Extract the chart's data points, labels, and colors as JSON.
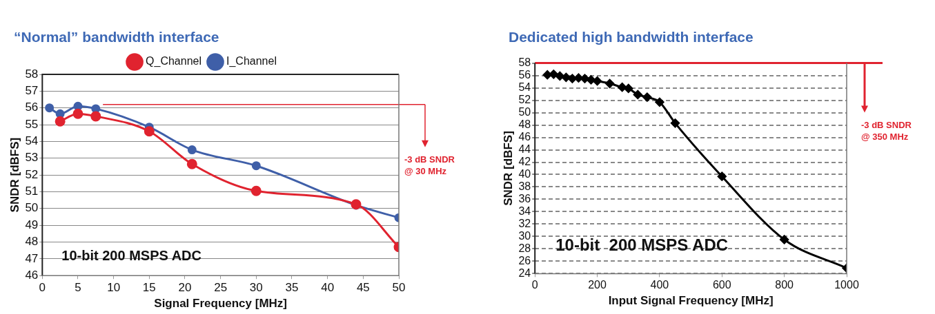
{
  "chart_data": [
    {
      "type": "line",
      "title": "“Normal” bandwidth interface",
      "xlabel": "Signal Frequency [MHz]",
      "ylabel": "SNDR [dBFS]",
      "xlim": [
        0,
        50
      ],
      "xticks": [
        0,
        5,
        10,
        15,
        20,
        25,
        30,
        35,
        40,
        45,
        50
      ],
      "ylim": [
        46,
        58
      ],
      "yticks": [
        46,
        47,
        48,
        49,
        50,
        51,
        52,
        53,
        54,
        55,
        56,
        57,
        58
      ],
      "grid": "y",
      "legend": "top",
      "marker": "circle",
      "series": [
        {
          "name": "I_Channel",
          "color": "#3f5fa8",
          "x": [
            1,
            2.5,
            5,
            7.5,
            15,
            21,
            30,
            44,
            50
          ],
          "values": [
            56.0,
            55.65,
            56.1,
            55.95,
            54.85,
            53.5,
            52.55,
            50.2,
            49.45
          ]
        },
        {
          "name": "Q_Channel",
          "color": "#e0232f",
          "x": [
            2.5,
            5,
            7.5,
            15,
            21,
            30,
            44,
            50
          ],
          "values": [
            55.2,
            55.65,
            55.5,
            54.6,
            52.65,
            51.05,
            50.25,
            47.7
          ]
        }
      ],
      "ref_lines": [
        {
          "axis": "y",
          "value": 56.2,
          "label": "-3 dB SNDR\n@ 30 MHz",
          "color": "#e0232f"
        }
      ],
      "annotations": [
        "10-bit 200 MSPS ADC"
      ]
    },
    {
      "type": "line",
      "title": "Dedicated high bandwidth interface",
      "xlabel": "Input Signal Frequency [MHz]",
      "ylabel": "SNDR [dBFS]",
      "xlim": [
        0,
        1000
      ],
      "xticks": [
        0,
        200,
        400,
        600,
        800,
        1000
      ],
      "ylim": [
        24,
        58
      ],
      "yticks": [
        24,
        26,
        28,
        30,
        32,
        34,
        36,
        38,
        40,
        42,
        44,
        46,
        48,
        50,
        52,
        54,
        56,
        58
      ],
      "grid": "y",
      "marker": "diamond",
      "series": [
        {
          "color": "#000000",
          "x": [
            40,
            60,
            80,
            100,
            120,
            140,
            160,
            180,
            200,
            240,
            280,
            300,
            330,
            360,
            400,
            450,
            600,
            800,
            1000
          ],
          "values": [
            56.1,
            56.2,
            55.9,
            55.7,
            55.5,
            55.6,
            55.5,
            55.3,
            55.1,
            54.7,
            54.1,
            53.9,
            52.9,
            52.5,
            51.7,
            48.3,
            39.7,
            29.5,
            24.9
          ]
        }
      ],
      "ref_lines": [
        {
          "axis": "y",
          "value": 58,
          "label": "-3 dB SNDR\n@ 350 MHz",
          "color": "#e0232f"
        }
      ],
      "annotations": [
        "10-bit  200 MSPS ADC"
      ]
    }
  ]
}
